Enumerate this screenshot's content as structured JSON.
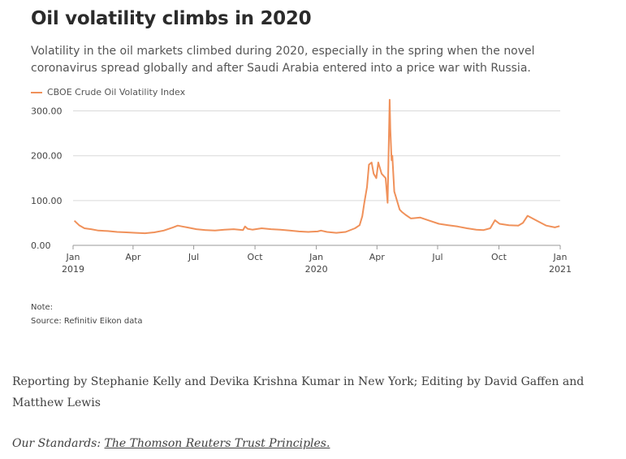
{
  "chart_data": {
    "type": "line",
    "title": "Oil volatility climbs in 2020",
    "subtitle": "Volatility in the oil markets climbed during 2020, especially in the spring when the novel coronavirus spread globally and after Saudi Arabia entered into a price war with Russia.",
    "ylim": [
      0,
      330
    ],
    "yticks": [
      0,
      100,
      200,
      300
    ],
    "ytick_labels": [
      "0.00",
      "100.00",
      "200.00",
      "300.00"
    ],
    "xlim": [
      "2019-01-01",
      "2021-01-01"
    ],
    "xticks": [
      {
        "date": "2019-01-01",
        "line1": "Jan",
        "line2": "2019"
      },
      {
        "date": "2019-04-01",
        "line1": "Apr",
        "line2": ""
      },
      {
        "date": "2019-07-01",
        "line1": "Jul",
        "line2": ""
      },
      {
        "date": "2019-10-01",
        "line1": "Oct",
        "line2": ""
      },
      {
        "date": "2020-01-01",
        "line1": "Jan",
        "line2": "2020"
      },
      {
        "date": "2020-04-01",
        "line1": "Apr",
        "line2": ""
      },
      {
        "date": "2020-07-01",
        "line1": "Jul",
        "line2": ""
      },
      {
        "date": "2020-10-01",
        "line1": "Oct",
        "line2": ""
      },
      {
        "date": "2021-01-01",
        "line1": "Jan",
        "line2": "2021"
      }
    ],
    "grid": true,
    "legend_position": "top-left",
    "series": [
      {
        "name": "CBOE Crude Oil Volatility Index",
        "color": "#f0915a",
        "x": [
          "2019-01-03",
          "2019-01-10",
          "2019-01-18",
          "2019-01-28",
          "2019-02-08",
          "2019-02-22",
          "2019-03-08",
          "2019-03-22",
          "2019-04-05",
          "2019-04-19",
          "2019-05-03",
          "2019-05-17",
          "2019-05-31",
          "2019-06-07",
          "2019-06-14",
          "2019-06-21",
          "2019-07-05",
          "2019-07-19",
          "2019-08-02",
          "2019-08-16",
          "2019-08-30",
          "2019-09-13",
          "2019-09-16",
          "2019-09-20",
          "2019-09-27",
          "2019-10-11",
          "2019-10-25",
          "2019-11-08",
          "2019-11-22",
          "2019-12-06",
          "2019-12-20",
          "2020-01-03",
          "2020-01-08",
          "2020-01-17",
          "2020-01-31",
          "2020-02-14",
          "2020-02-28",
          "2020-03-06",
          "2020-03-10",
          "2020-03-13",
          "2020-03-17",
          "2020-03-20",
          "2020-03-24",
          "2020-03-27",
          "2020-03-31",
          "2020-04-03",
          "2020-04-08",
          "2020-04-14",
          "2020-04-17",
          "2020-04-20",
          "2020-04-21",
          "2020-04-23",
          "2020-04-24",
          "2020-04-27",
          "2020-04-29",
          "2020-05-01",
          "2020-05-05",
          "2020-05-08",
          "2020-05-14",
          "2020-05-22",
          "2020-06-05",
          "2020-06-19",
          "2020-07-03",
          "2020-07-17",
          "2020-07-31",
          "2020-08-14",
          "2020-08-28",
          "2020-09-08",
          "2020-09-18",
          "2020-09-25",
          "2020-10-02",
          "2020-10-16",
          "2020-10-30",
          "2020-11-06",
          "2020-11-13",
          "2020-11-27",
          "2020-12-11",
          "2020-12-24",
          "2020-12-31"
        ],
        "y": [
          55,
          45,
          38,
          36,
          33,
          32,
          30,
          29,
          28,
          27,
          29,
          33,
          40,
          44,
          42,
          40,
          36,
          34,
          33,
          35,
          36,
          34,
          42,
          37,
          35,
          38,
          36,
          35,
          33,
          31,
          30,
          31,
          33,
          30,
          28,
          30,
          38,
          45,
          65,
          95,
          130,
          180,
          185,
          160,
          150,
          185,
          160,
          150,
          95,
          325,
          260,
          190,
          200,
          120,
          110,
          100,
          80,
          75,
          68,
          60,
          62,
          55,
          48,
          45,
          42,
          38,
          35,
          34,
          38,
          56,
          48,
          45,
          44,
          50,
          66,
          55,
          44,
          40,
          43
        ]
      }
    ]
  },
  "notes": {
    "note": "Note:",
    "source": "Source: Refinitiv Eikon data"
  },
  "credit": "Reporting by Stephanie Kelly and Devika Krishna Kumar in New York; Editing by David Gaffen and Matthew Lewis",
  "standards": {
    "prefix": "Our Standards: ",
    "link": "The Thomson Reuters Trust Principles."
  }
}
